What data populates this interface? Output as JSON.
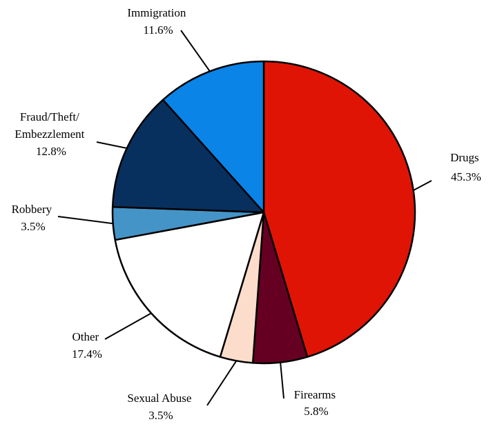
{
  "chart_data": {
    "type": "pie",
    "title": "",
    "slices": [
      {
        "label": "Drugs",
        "value": 45.3,
        "value_label": "45.3%",
        "color": "#E01405"
      },
      {
        "label": "Firearms",
        "value": 5.8,
        "value_label": "5.8%",
        "color": "#650022"
      },
      {
        "label": "Sexual Abuse",
        "value": 3.5,
        "value_label": "3.5%",
        "color": "#FCDCCA"
      },
      {
        "label": "Other",
        "value": 17.4,
        "value_label": "17.4%",
        "color": "#FFFFFF"
      },
      {
        "label": "Robbery",
        "value": 3.5,
        "value_label": "3.5%",
        "color": "#4494C8"
      },
      {
        "label": "Fraud/Theft/\nEmbezzlement",
        "value": 12.8,
        "value_label": "12.8%",
        "color": "#08305E"
      },
      {
        "label": "Immigration",
        "value": 11.6,
        "value_label": "11.6%",
        "color": "#0A84E6"
      }
    ],
    "start_angle_deg": 0,
    "direction": "clockwise",
    "slice_border_color": "#000000",
    "legend": "none"
  }
}
